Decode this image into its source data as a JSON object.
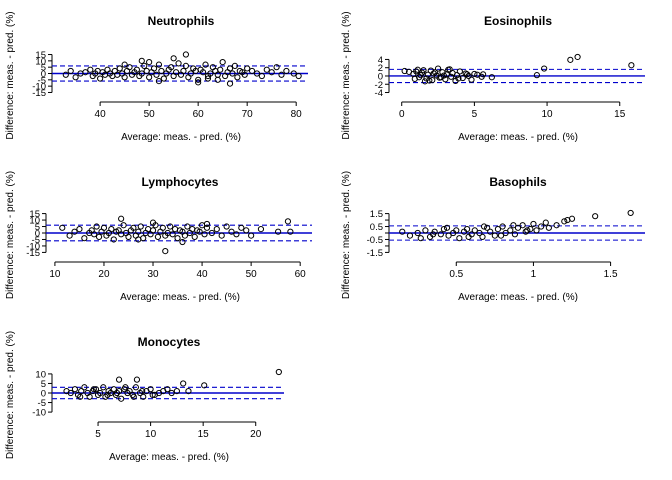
{
  "figure": {
    "ref_color": "#0000cc",
    "point_color": "#000000",
    "axis_color": "#000000"
  },
  "chart_data": [
    {
      "type": "scatter",
      "title": "Neutrophils",
      "xlabel": "Average: meas. - pred. (%)",
      "ylabel": "Difference: meas. - pred. (%)",
      "xlim": [
        31,
        82
      ],
      "ylim": [
        -17,
        17
      ],
      "xticks": [
        40,
        50,
        60,
        70,
        80
      ],
      "yticks": [
        -15,
        -10,
        -5,
        0,
        5,
        10,
        15
      ],
      "bias": 0,
      "limits_of_agreement": [
        -6,
        6
      ],
      "grid": false,
      "series": [
        {
          "x": [
            33,
            34,
            35,
            36,
            37,
            38,
            38.5,
            39,
            39.5,
            40,
            40.5,
            41,
            41.5,
            42,
            42.5,
            43,
            43.5,
            44,
            44.5,
            45,
            45.5,
            46,
            46.5,
            47,
            47.5,
            48,
            48.5,
            49,
            49.5,
            50,
            50.5,
            51,
            51.5,
            52,
            52.5,
            53,
            53.5,
            54,
            54.5,
            55,
            55.5,
            56,
            56.5,
            57,
            57.5,
            58,
            58.5,
            59,
            59.5,
            60,
            60.5,
            61,
            61.5,
            62,
            62.5,
            63,
            63.5,
            64,
            64.5,
            65,
            65.5,
            66,
            66.5,
            67,
            67.5,
            68,
            68.5,
            69,
            69.5,
            70,
            71,
            72,
            73,
            74,
            75,
            76,
            77,
            78,
            79.5,
            80.5,
            57.5,
            66.5,
            62,
            45,
            52,
            48.5,
            55,
            60,
            50,
            64
          ],
          "y": [
            -1,
            2,
            -3,
            0,
            1,
            3,
            -2,
            0,
            2,
            -4,
            1,
            -1,
            3,
            0,
            -2,
            2,
            -1,
            4,
            0,
            -3,
            2,
            5,
            -1,
            1,
            3,
            -2,
            0,
            6,
            2,
            -3,
            1,
            4,
            -1,
            7,
            2,
            -4,
            0,
            3,
            5,
            -2,
            1,
            8,
            -1,
            2,
            6,
            -3,
            0,
            4,
            2,
            -5,
            3,
            1,
            7,
            -2,
            0,
            5,
            2,
            -1,
            3,
            9,
            -2,
            1,
            4,
            0,
            6,
            -3,
            2,
            1,
            -1,
            4,
            2,
            0,
            -2,
            3,
            1,
            5,
            -1,
            2,
            0,
            -2,
            15,
            -8,
            -4,
            7,
            -6,
            10,
            12,
            -7,
            9,
            -5
          ]
        }
      ]
    },
    {
      "type": "scatter",
      "title": "Eosinophils",
      "xlabel": "Average: meas. - pred. (%)",
      "ylabel": "Difference: meas. - pred. (%)",
      "xlim": [
        -0.6,
        16.6
      ],
      "ylim": [
        -4.6,
        5.8
      ],
      "xticks": [
        0,
        5,
        10,
        15
      ],
      "yticks": [
        -4,
        -2,
        0,
        2,
        4
      ],
      "bias": 0,
      "limits_of_agreement": [
        -1.6,
        1.6
      ],
      "grid": false,
      "series": [
        {
          "x": [
            0.2,
            0.5,
            0.8,
            1.0,
            1.2,
            1.4,
            1.5,
            1.7,
            1.8,
            2.0,
            2.1,
            2.2,
            2.4,
            2.5,
            2.6,
            2.8,
            3.0,
            3.1,
            3.2,
            3.4,
            3.5,
            3.7,
            3.8,
            4.0,
            4.2,
            4.4,
            4.6,
            4.8,
            5.0,
            5.2,
            5.5,
            0.9,
            1.3,
            1.9,
            2.3,
            2.7,
            3.3,
            3.9,
            4.5,
            1.1,
            1.6,
            2.9,
            9.3,
            9.8,
            11.6,
            12.1,
            15.8,
            5.6,
            6.2
          ],
          "y": [
            1.2,
            1.0,
            0.5,
            1.1,
            -0.3,
            0.8,
            1.4,
            -0.6,
            0.3,
            1.3,
            -1.0,
            0.6,
            0.1,
            1.8,
            -0.4,
            0.9,
            -0.8,
            0.4,
            1.5,
            -0.2,
            0.7,
            -1.2,
            0.2,
            1.1,
            -0.5,
            0.6,
            0.0,
            -0.9,
            0.5,
            0.3,
            -0.2,
            -0.7,
            0.2,
            -1.1,
            0.9,
            -0.3,
            1.6,
            -0.6,
            0.4,
            1.5,
            -1.3,
            0.1,
            0.2,
            1.8,
            3.9,
            4.6,
            2.6,
            0.4,
            -0.3
          ]
        }
      ]
    },
    {
      "type": "scatter",
      "title": "Lymphocytes",
      "xlabel": "Average: meas. - pred. (%)",
      "ylabel": "Difference: meas. - pred. (%)",
      "xlim": [
        9,
        62
      ],
      "ylim": [
        -17,
        17
      ],
      "xticks": [
        10,
        20,
        30,
        40,
        50,
        60
      ],
      "yticks": [
        -15,
        -10,
        -5,
        0,
        5,
        10,
        15
      ],
      "bias": 0,
      "limits_of_agreement": [
        -6,
        6
      ],
      "grid": false,
      "series": [
        {
          "x": [
            11.5,
            13,
            14,
            15,
            16,
            17,
            17.5,
            18,
            18.5,
            19,
            19.5,
            20,
            20.5,
            21,
            21.5,
            22,
            22.5,
            23,
            23.5,
            24,
            24.5,
            25,
            25.5,
            26,
            26.5,
            27,
            27.5,
            28,
            28.5,
            29,
            29.5,
            30,
            30.5,
            31,
            31.5,
            32,
            32.5,
            33,
            33.5,
            34,
            34.5,
            35,
            35.5,
            36,
            36.5,
            37,
            37.5,
            38,
            38.5,
            39,
            39.5,
            40,
            40.5,
            41,
            42,
            43,
            44,
            45,
            46,
            47,
            48,
            49,
            50,
            52,
            55.5,
            57.5,
            58,
            23.5,
            32.5,
            27,
            36,
            41,
            30
          ],
          "y": [
            4,
            -2,
            1,
            3,
            -4,
            0,
            2,
            -1,
            5,
            -3,
            1,
            4,
            -2,
            0,
            3,
            -5,
            1,
            2,
            -1,
            6,
            0,
            -3,
            2,
            4,
            -2,
            1,
            5,
            -4,
            0,
            3,
            -1,
            2,
            6,
            -3,
            1,
            4,
            -2,
            0,
            5,
            -1,
            3,
            -4,
            2,
            1,
            -2,
            5,
            0,
            3,
            -3,
            2,
            1,
            6,
            -1,
            4,
            0,
            3,
            -2,
            5,
            1,
            -1,
            4,
            2,
            -2,
            3,
            1,
            9,
            1,
            11,
            -14,
            -5,
            -7,
            7,
            8
          ]
        }
      ]
    },
    {
      "type": "scatter",
      "title": "Basophils",
      "xlabel": "Average: meas. - pred. (%)",
      "ylabel": "Difference: meas. - pred. (%)",
      "xlim": [
        0.09,
        1.71
      ],
      "ylim": [
        -1.7,
        1.7
      ],
      "xticks": [
        0.5,
        1.0,
        1.5
      ],
      "yticks": [
        -1.5,
        -1.0,
        -0.5,
        0.0,
        0.5,
        1.0,
        1.5
      ],
      "ytick_labels": [
        "-1.5",
        "",
        "-0.5",
        "",
        "0.5",
        "",
        "1.5"
      ],
      "bias": 0,
      "limits_of_agreement": [
        -0.55,
        0.55
      ],
      "grid": false,
      "series": [
        {
          "x": [
            0.15,
            0.2,
            0.25,
            0.3,
            0.33,
            0.36,
            0.4,
            0.42,
            0.45,
            0.48,
            0.5,
            0.52,
            0.55,
            0.57,
            0.6,
            0.62,
            0.65,
            0.67,
            0.7,
            0.72,
            0.75,
            0.77,
            0.8,
            0.82,
            0.85,
            0.88,
            0.9,
            0.93,
            0.95,
            0.98,
            1.0,
            1.02,
            1.05,
            1.1,
            1.15,
            1.2,
            1.22,
            1.25,
            0.35,
            0.44,
            0.58,
            0.68,
            0.79,
            0.87,
            0.96,
            1.08,
            1.4,
            1.63,
            0.27
          ],
          "y": [
            0.1,
            -0.2,
            0.0,
            0.2,
            -0.3,
            0.1,
            -0.1,
            0.3,
            -0.2,
            0.0,
            0.2,
            -0.4,
            0.1,
            0.3,
            -0.1,
            0.2,
            0.0,
            -0.3,
            0.4,
            0.1,
            -0.2,
            0.3,
            0.5,
            0.0,
            0.2,
            -0.1,
            0.4,
            0.6,
            0.1,
            0.3,
            0.7,
            0.2,
            0.5,
            0.4,
            0.6,
            0.9,
            1.0,
            1.1,
            -0.1,
            0.4,
            -0.3,
            0.5,
            -0.2,
            0.6,
            0.2,
            0.8,
            1.3,
            1.55,
            -0.4
          ]
        }
      ]
    },
    {
      "type": "scatter",
      "title": "Monocytes",
      "xlabel": "Average: meas. - pred. (%)",
      "ylabel": "Difference: meas. - pred. (%)",
      "xlim": [
        1,
        22.5
      ],
      "ylim": [
        -11,
        11
      ],
      "xticks": [
        5,
        10,
        15,
        20
      ],
      "yticks": [
        -10,
        -5,
        0,
        5,
        10
      ],
      "bias": 0,
      "limits_of_agreement": [
        -3,
        3
      ],
      "grid": false,
      "series": [
        {
          "x": [
            2,
            2.4,
            2.8,
            3.1,
            3.4,
            3.7,
            4.0,
            4.2,
            4.5,
            4.8,
            5.0,
            5.2,
            5.5,
            5.7,
            6.0,
            6.2,
            6.5,
            6.7,
            7.0,
            7.2,
            7.5,
            7.8,
            8.0,
            8.3,
            8.6,
            9.0,
            9.3,
            9.6,
            10.0,
            10.4,
            10.8,
            11.2,
            11.6,
            12.0,
            12.5,
            3.3,
            4.6,
            5.9,
            6.8,
            7.6,
            8.4,
            9.2,
            10.2,
            7.0,
            8.7,
            13.1,
            13.6,
            15.1,
            22.2
          ],
          "y": [
            1,
            0,
            2,
            -1,
            1,
            3,
            0,
            -2,
            1,
            2,
            -1,
            0,
            3,
            -2,
            1,
            0,
            2,
            -1,
            1,
            -3,
            2,
            0,
            1,
            -1,
            3,
            0,
            -2,
            1,
            2,
            -1,
            0,
            1,
            2,
            0,
            1,
            -2,
            2,
            -1,
            0,
            3,
            -2,
            1,
            -1,
            7,
            7,
            5,
            1,
            4,
            11
          ]
        }
      ]
    }
  ]
}
